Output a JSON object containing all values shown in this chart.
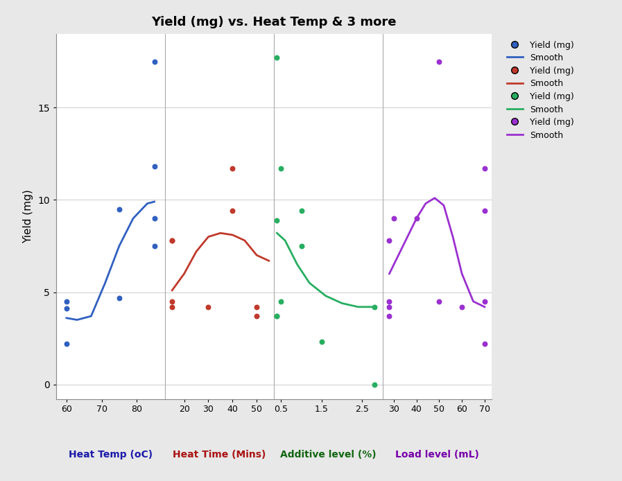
{
  "title": "Yield (mg) vs. Heat Temp & 3 more",
  "ylabel": "Yield (mg)",
  "background_color": "#e8e8e8",
  "plot_background": "#ffffff",
  "ylim": [
    -0.8,
    19
  ],
  "yticks": [
    0,
    5,
    10,
    15
  ],
  "panels": [
    {
      "xlabel": "Heat Temp (oC)",
      "color": "#3060c0",
      "scatter_x": [
        60,
        60,
        60,
        75,
        75,
        85,
        85,
        85,
        85
      ],
      "scatter_y": [
        4.5,
        4.1,
        2.2,
        9.5,
        4.7,
        17.5,
        11.8,
        9.0,
        7.5
      ],
      "smooth_x": [
        60,
        63,
        67,
        71,
        75,
        79,
        83,
        85
      ],
      "smooth_y": [
        3.6,
        3.5,
        3.7,
        5.5,
        7.5,
        9.0,
        9.8,
        9.9
      ],
      "xlim": [
        57,
        88
      ],
      "xticks": [
        60,
        70,
        80
      ]
    },
    {
      "xlabel": "Heat Time (Mins)",
      "color": "#c0392b",
      "scatter_x": [
        15,
        15,
        15,
        15,
        30,
        40,
        40,
        50,
        50
      ],
      "scatter_y": [
        4.2,
        4.5,
        7.8,
        7.8,
        4.2,
        11.7,
        9.4,
        4.2,
        3.7
      ],
      "smooth_x": [
        15,
        20,
        25,
        30,
        35,
        40,
        45,
        50,
        55
      ],
      "smooth_y": [
        5.1,
        6.0,
        7.2,
        8.0,
        8.2,
        8.1,
        7.8,
        7.0,
        6.7
      ],
      "xlim": [
        12,
        57
      ],
      "xticks": [
        20,
        30,
        40,
        50
      ]
    },
    {
      "xlabel": "Additive level (%)",
      "color": "#27ae60",
      "scatter_x": [
        0.4,
        0.4,
        0.4,
        0.4,
        0.5,
        0.5,
        1.0,
        1.0,
        1.5,
        2.8,
        2.8
      ],
      "scatter_y": [
        17.7,
        8.9,
        3.7,
        3.7,
        11.7,
        4.5,
        9.4,
        7.5,
        2.3,
        0.0,
        4.2
      ],
      "smooth_x": [
        0.4,
        0.6,
        0.9,
        1.2,
        1.6,
        2.0,
        2.4,
        2.8
      ],
      "smooth_y": [
        8.2,
        7.8,
        6.5,
        5.5,
        4.8,
        4.4,
        4.2,
        4.2
      ],
      "xlim": [
        0.32,
        3.0
      ],
      "xticks": [
        0.5,
        1.5,
        2.5
      ]
    },
    {
      "xlabel": "Load level (mL)",
      "color": "#9b30d0",
      "scatter_x": [
        28,
        28,
        28,
        28,
        30,
        40,
        50,
        50,
        60,
        70,
        70,
        70,
        70
      ],
      "scatter_y": [
        7.8,
        4.5,
        4.2,
        3.7,
        9.0,
        9.0,
        17.5,
        4.5,
        4.2,
        11.7,
        9.4,
        4.5,
        2.2
      ],
      "smooth_x": [
        28,
        32,
        36,
        40,
        44,
        48,
        52,
        56,
        60,
        65,
        70
      ],
      "smooth_y": [
        6.0,
        7.0,
        8.0,
        9.0,
        9.8,
        10.1,
        9.7,
        8.0,
        6.0,
        4.5,
        4.2
      ],
      "xlim": [
        25,
        73
      ],
      "xticks": [
        30,
        40,
        50,
        60,
        70
      ]
    }
  ],
  "legend": [
    {
      "label": "Yield (mg)",
      "type": "dot",
      "color": "#3060c0"
    },
    {
      "label": "Smooth",
      "type": "line",
      "color": "#3060c0"
    },
    {
      "label": "Yield (mg)",
      "type": "dot",
      "color": "#c0392b"
    },
    {
      "label": "Smooth",
      "type": "line",
      "color": "#c0392b"
    },
    {
      "label": "Yield (mg)",
      "type": "dot",
      "color": "#27ae60"
    },
    {
      "label": "Smooth",
      "type": "line",
      "color": "#27ae60"
    },
    {
      "label": "Yield (mg)",
      "type": "dot",
      "color": "#9b30d0"
    },
    {
      "label": "Smooth",
      "type": "line",
      "color": "#9b30d0"
    }
  ]
}
